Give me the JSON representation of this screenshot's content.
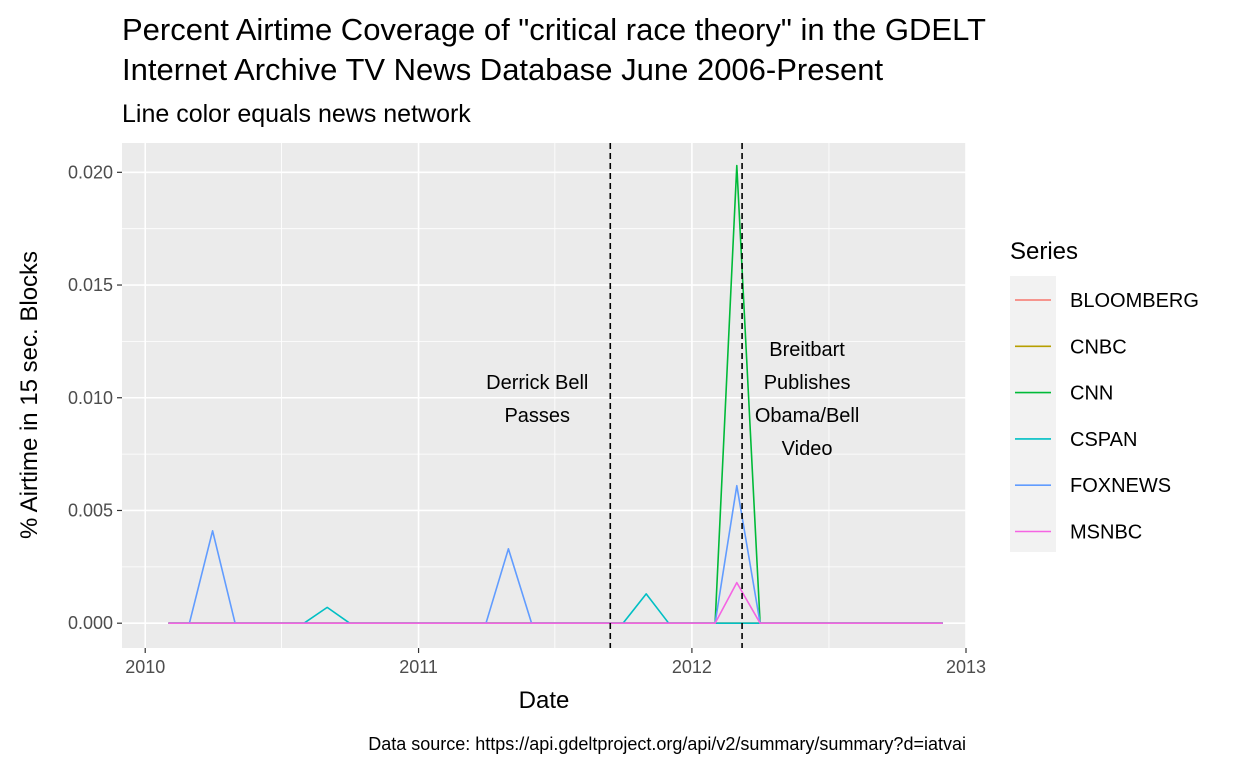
{
  "chart_data": {
    "type": "line",
    "title_lines": [
      "Percent Airtime Coverage of \"critical race theory\" in the GDELT",
      "Internet Archive TV News Database June 2006-Present"
    ],
    "subtitle": "Line color equals news network",
    "xlabel": "Date",
    "ylabel": "% Airtime in 15 sec. Blocks",
    "caption": "Data source: https://api.gdeltproject.org/api/v2/summary/summary?d=iatvai",
    "xlim": [
      "2009-12-01",
      "2013-01-01"
    ],
    "ylim": [
      -0.0011,
      0.0213
    ],
    "x_ticks": [
      {
        "date": "2010-01-01",
        "label": "2010"
      },
      {
        "date": "2011-01-01",
        "label": "2011"
      },
      {
        "date": "2012-01-01",
        "label": "2012"
      },
      {
        "date": "2013-01-01",
        "label": "2013"
      }
    ],
    "y_ticks": [
      {
        "value": 0.0,
        "label": "0.000"
      },
      {
        "value": 0.005,
        "label": "0.005"
      },
      {
        "value": 0.01,
        "label": "0.010"
      },
      {
        "value": 0.015,
        "label": "0.015"
      },
      {
        "value": 0.02,
        "label": "0.020"
      }
    ],
    "grid": true,
    "panel_background": "#ebebeb",
    "legend": {
      "title": "Series",
      "position": "right"
    },
    "x": [
      "2010-02-01",
      "2010-03-01",
      "2010-04-01",
      "2010-05-01",
      "2010-06-01",
      "2010-07-01",
      "2010-08-01",
      "2010-09-01",
      "2010-10-01",
      "2010-11-01",
      "2010-12-01",
      "2011-01-01",
      "2011-02-01",
      "2011-03-01",
      "2011-04-01",
      "2011-05-01",
      "2011-06-01",
      "2011-07-01",
      "2011-08-01",
      "2011-09-01",
      "2011-10-01",
      "2011-11-01",
      "2011-12-01",
      "2012-01-01",
      "2012-02-01",
      "2012-03-01",
      "2012-04-01",
      "2012-05-01",
      "2012-06-01",
      "2012-07-01",
      "2012-08-01",
      "2012-09-01",
      "2012-10-01",
      "2012-11-01",
      "2012-12-01"
    ],
    "series": [
      {
        "name": "BLOOMBERG",
        "color": "#F8766D",
        "values": [
          0,
          0,
          0,
          0,
          0,
          0,
          0,
          0,
          0,
          0,
          0,
          0,
          0,
          0,
          0,
          0,
          0,
          0,
          0,
          0,
          0,
          0,
          0,
          0,
          0,
          0,
          0,
          0,
          0,
          0,
          0,
          0,
          0,
          0,
          0
        ]
      },
      {
        "name": "CNBC",
        "color": "#B79F00",
        "values": [
          0,
          0,
          0,
          0,
          0,
          0,
          0,
          0,
          0,
          0,
          0,
          0,
          0,
          0,
          0,
          0,
          0,
          0,
          0,
          0,
          0,
          0,
          0,
          0,
          0,
          0,
          0,
          0,
          0,
          0,
          0,
          0,
          0,
          0,
          0
        ]
      },
      {
        "name": "CNN",
        "color": "#00BA38",
        "values": [
          0,
          0,
          0,
          0,
          0,
          0,
          0,
          0,
          0,
          0,
          0,
          0,
          0,
          0,
          0,
          0,
          0,
          0,
          0,
          0,
          0,
          0,
          0,
          0,
          0,
          0.0203,
          0,
          0,
          0,
          0,
          0,
          0,
          0,
          0,
          0
        ]
      },
      {
        "name": "CSPAN",
        "color": "#00BFC4",
        "values": [
          0,
          0,
          0,
          0,
          0,
          0,
          0,
          0.0007,
          0,
          0,
          0,
          0,
          0,
          0,
          0,
          0,
          0,
          0,
          0,
          0,
          0,
          0.0013,
          0,
          0,
          0,
          0,
          0,
          0,
          0,
          0,
          0,
          0,
          0,
          0,
          0
        ]
      },
      {
        "name": "FOXNEWS",
        "color": "#619CFF",
        "values": [
          0,
          0,
          0.0041,
          0,
          0,
          0,
          0,
          0,
          0,
          0,
          0,
          0,
          0,
          0,
          0,
          0.0033,
          0,
          0,
          0,
          0,
          0,
          0,
          0,
          0,
          0,
          0.0061,
          0,
          0,
          0,
          0,
          0,
          0,
          0,
          0,
          0
        ]
      },
      {
        "name": "MSNBC",
        "color": "#F564E3",
        "values": [
          0,
          0,
          0,
          0,
          0,
          0,
          0,
          0,
          0,
          0,
          0,
          0,
          0,
          0,
          0,
          0,
          0,
          0,
          0,
          0,
          0,
          0,
          0,
          0,
          0,
          0.0018,
          0,
          0,
          0,
          0,
          0,
          0,
          0,
          0,
          0
        ]
      }
    ],
    "annotations": [
      {
        "date": "2011-09-14",
        "label_lines": [
          "Derrick Bell",
          "Passes"
        ]
      },
      {
        "date": "2012-03-08",
        "label_lines": [
          "Breitbart",
          "Publishes",
          "Obama/Bell",
          "Video"
        ]
      }
    ]
  }
}
